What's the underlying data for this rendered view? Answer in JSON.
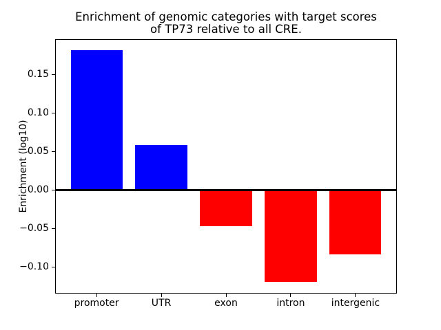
{
  "chart_data": {
    "type": "bar",
    "title": "Enrichment of genomic categories with target scores\nof TP73 relative to all CRE.",
    "ylabel": "Enrichment (log10)",
    "categories": [
      "promoter",
      "UTR",
      "exon",
      "intron",
      "intergenic"
    ],
    "values": [
      0.181,
      0.058,
      -0.047,
      -0.119,
      -0.084
    ],
    "colors": [
      "#0000ff",
      "#0000ff",
      "#ff0000",
      "#ff0000",
      "#ff0000"
    ],
    "positive_color": "#0000ff",
    "negative_color": "#ff0000",
    "yticks": [
      0.15,
      0.1,
      0.05,
      0.0,
      -0.05,
      -0.1
    ],
    "ytick_labels": [
      "0.15",
      "0.10",
      "0.05",
      "0.00",
      "−0.05",
      "−0.10"
    ],
    "ylim": [
      -0.1345,
      0.1955
    ],
    "xlim": [
      -0.64,
      4.64
    ],
    "bar_width": 0.8,
    "grid": false,
    "zero_line": true,
    "axis_color": "#000000",
    "background_color": "#ffffff"
  }
}
